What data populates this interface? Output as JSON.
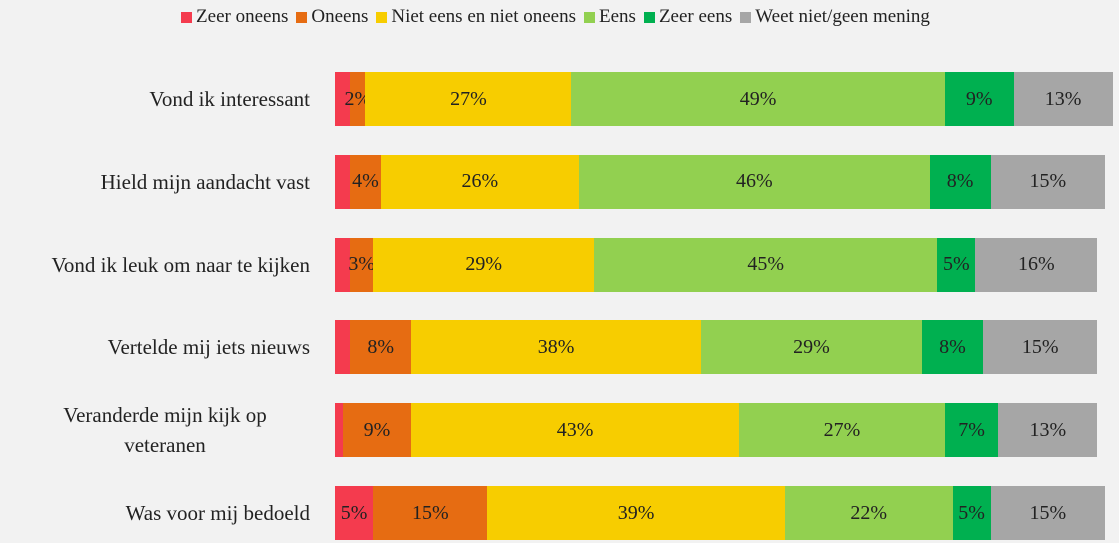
{
  "chart_data": {
    "type": "stacked-bar-horizontal",
    "categories": [
      "Vond ik interessant",
      "Hield mijn aandacht vast",
      "Vond ik leuk om naar te kijken",
      "Vertelde mij iets nieuws",
      "Veranderde mijn kijk op veteranen",
      "Was voor mij bedoeld"
    ],
    "xlim": [
      0,
      101
    ],
    "series": [
      {
        "name": "Zeer oneens",
        "color": "#f43b4e",
        "values": [
          2,
          2,
          2,
          2,
          1,
          5
        ],
        "value_labels": [
          null,
          null,
          null,
          null,
          null,
          "5%"
        ]
      },
      {
        "name": "Oneens",
        "color": "#e66c12",
        "values": [
          2,
          4,
          3,
          8,
          9,
          15
        ],
        "value_labels": [
          "2%",
          "4%",
          "3%",
          "8%",
          "9%",
          "15%"
        ]
      },
      {
        "name": "Niet eens en niet oneens",
        "color": "#f7cd00",
        "values": [
          27,
          26,
          29,
          38,
          43,
          39
        ],
        "value_labels": [
          "27%",
          "26%",
          "29%",
          "38%",
          "43%",
          "39%"
        ]
      },
      {
        "name": "Eens",
        "color": "#92d050",
        "values": [
          49,
          46,
          45,
          29,
          27,
          22
        ],
        "value_labels": [
          "49%",
          "46%",
          "45%",
          "29%",
          "27%",
          "22%"
        ]
      },
      {
        "name": "Zeer eens",
        "color": "#00b050",
        "values": [
          9,
          8,
          5,
          8,
          7,
          5
        ],
        "value_labels": [
          "9%",
          "8%",
          "5%",
          "8%",
          "7%",
          "5%"
        ]
      },
      {
        "name": "Weet niet/geen mening",
        "color": "#a6a6a6",
        "values": [
          13,
          15,
          16,
          15,
          13,
          15
        ],
        "value_labels": [
          "13%",
          "15%",
          "16%",
          "15%",
          "13%",
          "15%"
        ]
      }
    ]
  }
}
